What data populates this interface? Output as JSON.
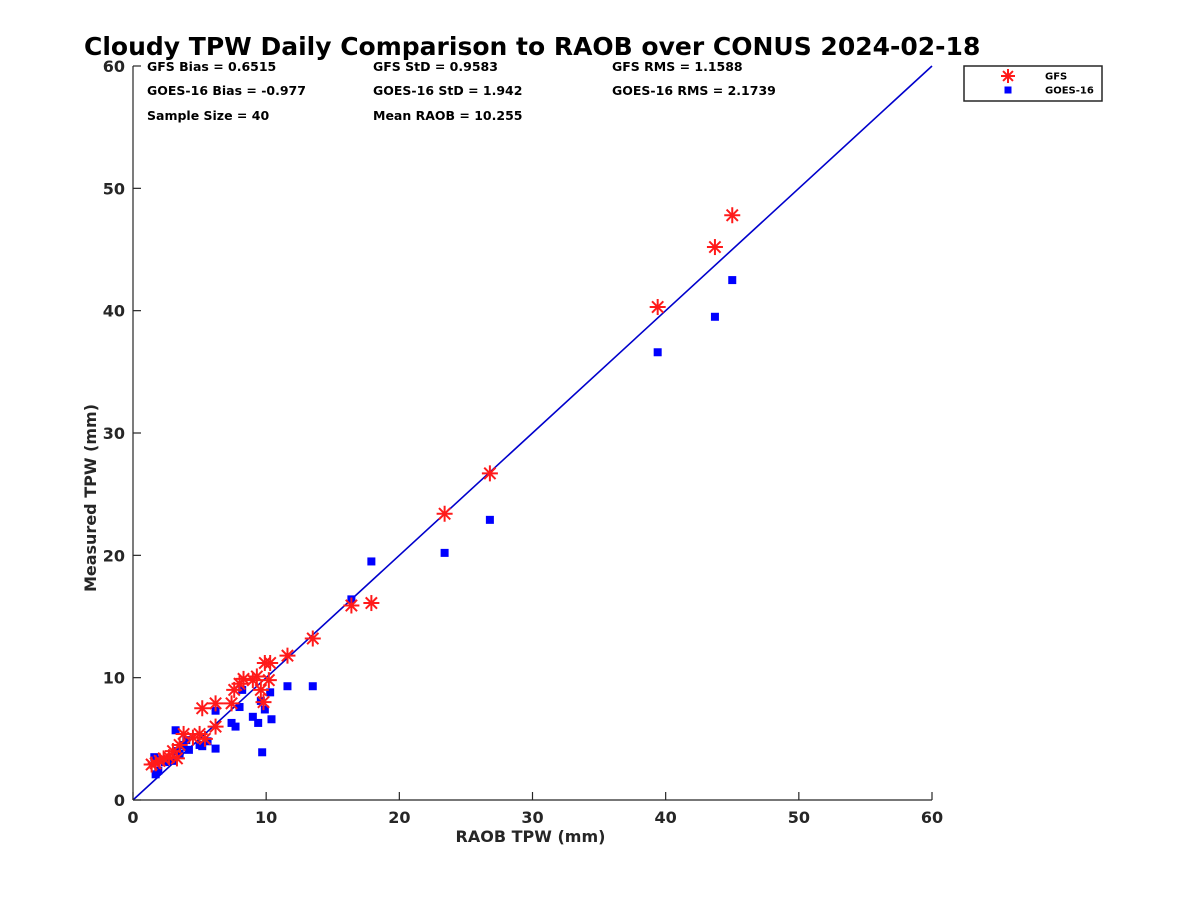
{
  "chart_data": {
    "type": "scatter",
    "title": "Cloudy TPW Daily Comparison to RAOB over CONUS 2024-02-18",
    "xlabel": "RAOB TPW (mm)",
    "ylabel": "Measured TPW (mm)",
    "xlim": [
      0,
      60
    ],
    "ylim": [
      0,
      60
    ],
    "xticks": [
      "0",
      "10",
      "20",
      "30",
      "40",
      "50",
      "60"
    ],
    "yticks": [
      "0",
      "10",
      "20",
      "30",
      "40",
      "50",
      "60"
    ],
    "grid": false,
    "legend_position": "top-right-outside",
    "reference_line": {
      "from": [
        0,
        0
      ],
      "to": [
        60,
        60
      ],
      "color": "#0000cc"
    },
    "stats": [
      [
        "GFS Bias = 0.6515",
        "GFS StD = 0.9583",
        "GFS RMS = 1.1588"
      ],
      [
        "GOES-16 Bias = -0.977",
        "GOES-16 StD = 1.942",
        "GOES-16 RMS = 2.1739"
      ],
      [
        "Sample Size = 40",
        "Mean RAOB = 10.255",
        ""
      ]
    ],
    "series": [
      {
        "name": "GFS",
        "marker": "asterisk",
        "color": "#ff1a1a",
        "points": [
          [
            1.4,
            2.9
          ],
          [
            1.7,
            3.0
          ],
          [
            2.0,
            3.2
          ],
          [
            2.3,
            3.4
          ],
          [
            2.7,
            3.5
          ],
          [
            3.0,
            4.0
          ],
          [
            3.3,
            3.4
          ],
          [
            3.5,
            4.5
          ],
          [
            3.8,
            5.4
          ],
          [
            4.5,
            5.1
          ],
          [
            5.0,
            5.4
          ],
          [
            5.2,
            7.5
          ],
          [
            5.4,
            5.0
          ],
          [
            6.2,
            6.0
          ],
          [
            6.2,
            7.9
          ],
          [
            7.4,
            7.9
          ],
          [
            7.6,
            9.0
          ],
          [
            8.0,
            9.5
          ],
          [
            8.3,
            9.9
          ],
          [
            9.0,
            9.8
          ],
          [
            9.3,
            10.1
          ],
          [
            9.6,
            9.0
          ],
          [
            9.8,
            8.0
          ],
          [
            9.9,
            11.2
          ],
          [
            10.2,
            9.8
          ],
          [
            10.3,
            11.2
          ],
          [
            11.6,
            11.8
          ],
          [
            13.5,
            13.2
          ],
          [
            16.4,
            15.9
          ],
          [
            17.9,
            16.1
          ],
          [
            23.4,
            23.4
          ],
          [
            26.8,
            26.7
          ],
          [
            39.4,
            40.3
          ],
          [
            43.7,
            45.2
          ],
          [
            45.0,
            47.8
          ]
        ]
      },
      {
        "name": "GOES-16",
        "marker": "square",
        "color": "#0000ff",
        "points": [
          [
            1.6,
            3.5
          ],
          [
            1.7,
            2.1
          ],
          [
            1.9,
            2.4
          ],
          [
            2.0,
            3.3
          ],
          [
            2.4,
            3.1
          ],
          [
            3.0,
            3.2
          ],
          [
            3.2,
            5.7
          ],
          [
            3.3,
            4.0
          ],
          [
            3.5,
            3.8
          ],
          [
            3.8,
            4.5
          ],
          [
            4.0,
            4.9
          ],
          [
            4.2,
            4.1
          ],
          [
            5.0,
            4.5
          ],
          [
            5.2,
            4.4
          ],
          [
            5.6,
            4.8
          ],
          [
            6.2,
            4.2
          ],
          [
            6.2,
            7.3
          ],
          [
            7.4,
            6.3
          ],
          [
            7.7,
            6.0
          ],
          [
            8.0,
            7.6
          ],
          [
            8.2,
            9.0
          ],
          [
            9.0,
            6.8
          ],
          [
            9.4,
            6.3
          ],
          [
            9.6,
            8.1
          ],
          [
            9.7,
            3.9
          ],
          [
            9.9,
            7.4
          ],
          [
            10.3,
            8.8
          ],
          [
            10.4,
            6.6
          ],
          [
            11.6,
            9.3
          ],
          [
            13.5,
            9.3
          ],
          [
            16.4,
            16.4
          ],
          [
            17.9,
            19.5
          ],
          [
            23.4,
            20.2
          ],
          [
            26.8,
            22.9
          ],
          [
            39.4,
            36.6
          ],
          [
            43.7,
            39.5
          ],
          [
            45.0,
            42.5
          ]
        ]
      }
    ]
  }
}
